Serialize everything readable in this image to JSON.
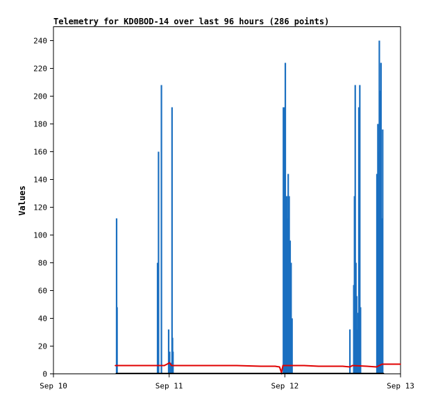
{
  "chart_data": {
    "type": "line",
    "title": "Telemetry for KD0BOD-14 over last 96 hours (286 points)",
    "ylabel": "Values",
    "xlabel": "",
    "x_range": [
      0,
      72
    ],
    "x_ticks": [
      {
        "x": 0,
        "label": "Sep 10"
      },
      {
        "x": 24,
        "label": "Sep 11"
      },
      {
        "x": 48,
        "label": "Sep 12"
      },
      {
        "x": 72,
        "label": "Sep 13"
      }
    ],
    "ylim": [
      0,
      250
    ],
    "y_ticks": [
      0,
      20,
      40,
      60,
      80,
      100,
      120,
      140,
      160,
      180,
      200,
      220,
      240
    ],
    "grid": false,
    "colors": {
      "series_blue": "#1a6fc0",
      "series_red": "#e00000",
      "series_black": "#000000"
    },
    "series": [
      {
        "color": "#1a6fc0",
        "style": "spikes",
        "points": [
          [
            13.1,
            112
          ],
          [
            13.2,
            48
          ],
          [
            21.6,
            80
          ],
          [
            21.8,
            160
          ],
          [
            22.4,
            208
          ],
          [
            23.9,
            32
          ],
          [
            24.1,
            16
          ],
          [
            24.4,
            8
          ],
          [
            24.6,
            192
          ],
          [
            24.8,
            16
          ],
          [
            24.7,
            26
          ],
          [
            47.7,
            192
          ],
          [
            47.9,
            192
          ],
          [
            48.0,
            100
          ],
          [
            48.1,
            224
          ],
          [
            48.2,
            112
          ],
          [
            48.4,
            128
          ],
          [
            48.5,
            80
          ],
          [
            48.6,
            112
          ],
          [
            48.7,
            144
          ],
          [
            48.9,
            128
          ],
          [
            49.1,
            96
          ],
          [
            49.3,
            80
          ],
          [
            49.5,
            40
          ],
          [
            61.5,
            32
          ],
          [
            62.3,
            64
          ],
          [
            62.45,
            128
          ],
          [
            62.6,
            208
          ],
          [
            62.75,
            80
          ],
          [
            62.9,
            56
          ],
          [
            63.05,
            32
          ],
          [
            63.2,
            44
          ],
          [
            63.35,
            192
          ],
          [
            63.55,
            208
          ],
          [
            63.7,
            48
          ],
          [
            67.1,
            144
          ],
          [
            67.3,
            180
          ],
          [
            67.4,
            160
          ],
          [
            67.5,
            144
          ],
          [
            67.6,
            240
          ],
          [
            67.8,
            204
          ],
          [
            67.95,
            224
          ],
          [
            68.1,
            112
          ],
          [
            68.3,
            176
          ]
        ]
      },
      {
        "color": "#e00000",
        "style": "line",
        "points": [
          [
            12.8,
            6
          ],
          [
            20,
            6
          ],
          [
            23,
            6
          ],
          [
            24.1,
            8
          ],
          [
            24.5,
            6
          ],
          [
            30,
            6
          ],
          [
            38,
            6
          ],
          [
            43,
            5.5
          ],
          [
            46,
            5.5
          ],
          [
            46.9,
            5
          ],
          [
            47.3,
            1
          ],
          [
            47.6,
            6
          ],
          [
            52,
            6
          ],
          [
            55,
            5.5
          ],
          [
            60,
            5.5
          ],
          [
            61.5,
            5
          ],
          [
            62,
            6
          ],
          [
            65,
            5.5
          ],
          [
            67,
            5
          ],
          [
            68.2,
            7
          ],
          [
            72,
            7
          ]
        ]
      },
      {
        "color": "#000000",
        "style": "line",
        "points": [
          [
            13,
            0.3
          ],
          [
            68.5,
            0.3
          ]
        ]
      }
    ]
  }
}
